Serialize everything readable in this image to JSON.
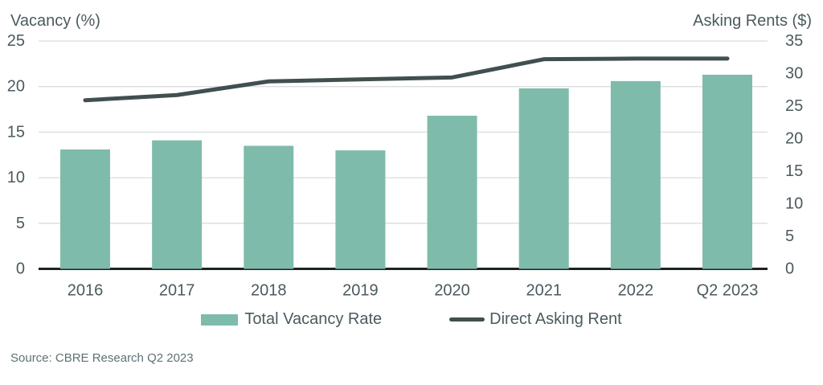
{
  "header": {
    "left_axis_title": "Vacancy (%)",
    "right_axis_title": "Asking Rents ($)"
  },
  "legend": {
    "bar_label": "Total Vacancy Rate",
    "line_label": "Direct Asking Rent"
  },
  "source": "Source: CBRE Research Q2 2023",
  "colors": {
    "bar": "#7fbbaa",
    "line": "#404f50",
    "text": "#4b5a5e",
    "gridline": "#d9dedd",
    "zero_axis": "#1d2222",
    "source_text": "#5e7274"
  },
  "chart_data": {
    "type": "bar",
    "subtype": "bar+line dual axis",
    "categories": [
      "2016",
      "2017",
      "2018",
      "2019",
      "2020",
      "2021",
      "2022",
      "Q2 2023"
    ],
    "series": [
      {
        "name": "Total Vacancy Rate",
        "type": "bar",
        "axis": "left",
        "color": "#7fbbaa",
        "values": [
          13.1,
          14.1,
          13.5,
          13.0,
          16.8,
          19.8,
          20.6,
          21.3
        ]
      },
      {
        "name": "Direct Asking Rent",
        "type": "line",
        "axis": "right",
        "color": "#404f50",
        "values": [
          25.9,
          26.7,
          28.8,
          29.1,
          29.4,
          32.2,
          32.3,
          32.3
        ]
      }
    ],
    "left_axis": {
      "label": "Vacancy (%)",
      "min": 0,
      "max": 25,
      "ticks": [
        25,
        20,
        15,
        10,
        5,
        0
      ]
    },
    "right_axis": {
      "label": "Asking Rents ($)",
      "min": 0,
      "max": 35,
      "ticks": [
        35,
        30,
        25,
        20,
        15,
        10,
        5,
        0
      ]
    },
    "grid": "horizontal gridlines at left-axis ticks, zero baseline emphasized",
    "legend_position": "bottom center",
    "title": "",
    "annotations": []
  }
}
